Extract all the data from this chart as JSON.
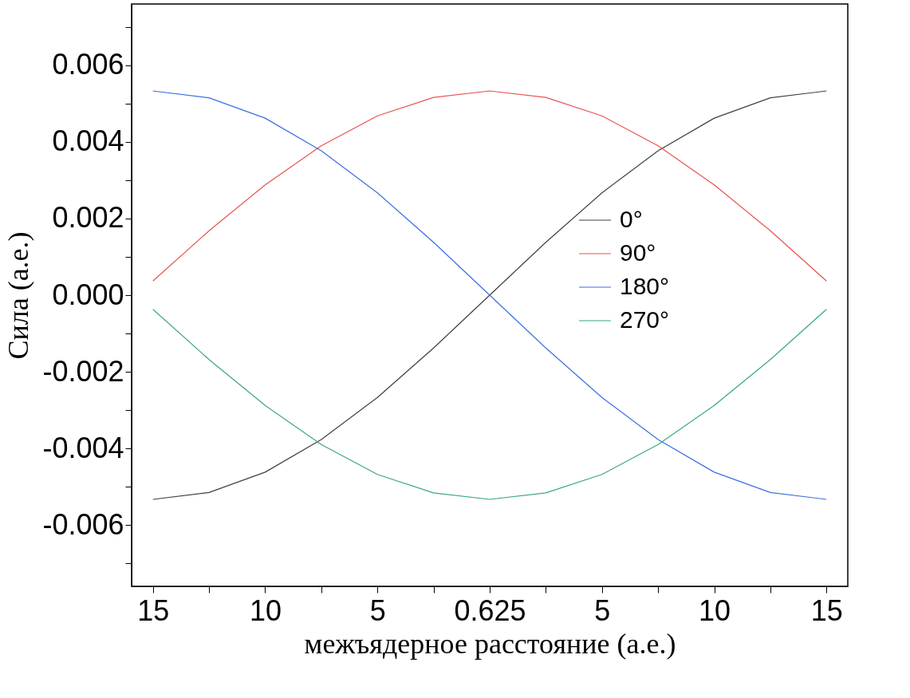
{
  "chart_data": {
    "type": "line",
    "xlabel": "межъядерное расстояние (а.е.)",
    "ylabel": "Сила (а.е.)",
    "categories": [
      "15",
      null,
      "10",
      null,
      "5",
      null,
      "0.625",
      null,
      "5",
      null,
      "10",
      null,
      "15"
    ],
    "ylim": [
      -0.0076,
      0.0076
    ],
    "yticks": [
      {
        "value": -0.007,
        "label": null
      },
      {
        "value": -0.006,
        "label": "-0.006"
      },
      {
        "value": -0.005,
        "label": null
      },
      {
        "value": -0.004,
        "label": "-0.004"
      },
      {
        "value": -0.003,
        "label": null
      },
      {
        "value": -0.002,
        "label": "-0.002"
      },
      {
        "value": -0.001,
        "label": null
      },
      {
        "value": 0,
        "label": "0.000"
      },
      {
        "value": 0.001,
        "label": null
      },
      {
        "value": 0.002,
        "label": "0.002"
      },
      {
        "value": 0.003,
        "label": null
      },
      {
        "value": 0.004,
        "label": "0.004"
      },
      {
        "value": 0.005,
        "label": null
      },
      {
        "value": 0.006,
        "label": "0.006"
      },
      {
        "value": 0.007,
        "label": null
      }
    ],
    "series": [
      {
        "name": "0°",
        "color": "#404040",
        "values": [
          -0.00533,
          -0.00515,
          -0.00462,
          -0.00377,
          -0.00267,
          -0.00138,
          0,
          0.00138,
          0.00267,
          0.00377,
          0.00462,
          0.00515,
          0.00533
        ]
      },
      {
        "name": "90°",
        "color": "#e8534f",
        "values": [
          0.00037,
          0.00168,
          0.00288,
          0.0039,
          0.00468,
          0.00516,
          0.00533,
          0.00516,
          0.00468,
          0.0039,
          0.00288,
          0.00168,
          0.00037
        ]
      },
      {
        "name": "180°",
        "color": "#3b6fe0",
        "values": [
          0.00533,
          0.00515,
          0.00462,
          0.00377,
          0.00267,
          0.00138,
          0,
          -0.00138,
          -0.00267,
          -0.00377,
          -0.00462,
          -0.00515,
          -0.00533
        ]
      },
      {
        "name": "270°",
        "color": "#3aa87a",
        "values": [
          -0.00037,
          -0.00168,
          -0.00288,
          -0.0039,
          -0.00468,
          -0.00516,
          -0.00533,
          -0.00516,
          -0.00468,
          -0.0039,
          -0.00288,
          -0.00168,
          -0.00037
        ]
      }
    ],
    "legend": "right",
    "grid": false,
    "marker": "none",
    "line_style": "solid"
  }
}
